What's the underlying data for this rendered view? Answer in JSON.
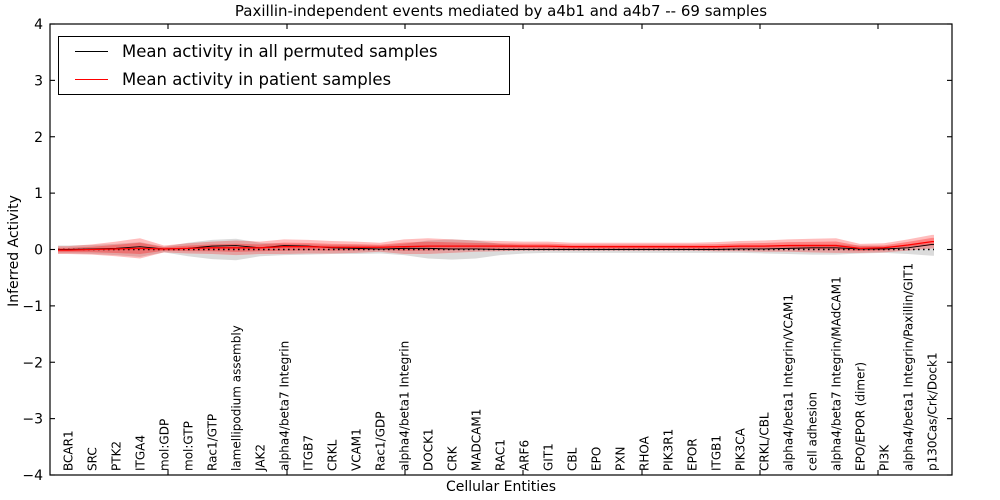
{
  "figure": {
    "title": "Paxillin-independent events mediated by a4b1 and a4b7 -- 69 samples"
  },
  "chart_data": {
    "type": "line",
    "title": "Paxillin-independent events mediated by a4b1 and a4b7 -- 69 samples",
    "xlabel": "Cellular Entities",
    "ylabel": "Inferred Activity",
    "ylim": [
      -4,
      4
    ],
    "yticks": [
      4,
      3,
      2,
      1,
      0,
      -1,
      -2,
      -3,
      -4
    ],
    "yticklabels": [
      "4",
      "3",
      "2",
      "1",
      "0",
      "−1",
      "−2",
      "−3",
      "−4"
    ],
    "grid": false,
    "legend_position": "upper left",
    "legend": [
      "Mean activity in all permuted samples",
      "Mean activity in patient samples"
    ],
    "zero_reference_line": {
      "y": 0,
      "style": "dotted",
      "color": "#000000"
    },
    "colors": {
      "permuted_line": "#000000",
      "patient_line": "#ff0000",
      "permuted_band": "rgba(0,0,0,0.14)",
      "patient_band": "rgba(255,0,0,0.26)"
    },
    "categories": [
      "BCAR1",
      "SRC",
      "PTK2",
      "ITGA4",
      "mol:GDP",
      "mol:GTP",
      "Rac1/GTP",
      "lamellipodium assembly",
      "JAK2",
      "alpha4/beta7 Integrin",
      "ITGB7",
      "CRKL",
      "VCAM1",
      "Rac1/GDP",
      "alpha4/beta1 Integrin",
      "DOCK1",
      "CRK",
      "MADCAM1",
      "RAC1",
      "ARF6",
      "GIT1",
      "CBL",
      "EPO",
      "PXN",
      "RHOA",
      "PIK3R1",
      "EPOR",
      "ITGB1",
      "PIK3CA",
      "CRKL/CBL",
      "alpha4/beta1 Integrin/VCAM1",
      "cell adhesion",
      "alpha4/beta7 Integrin/MAdCAM1",
      "EPO/EPOR (dimer)",
      "PI3K",
      "alpha4/beta1 Integrin/Paxillin/GIT1",
      "p130Cas/Crk/Dock1"
    ],
    "series": [
      {
        "name": "Mean activity in all permuted samples",
        "values": [
          0,
          0.01,
          0.02,
          0.05,
          0.01,
          0.02,
          0.06,
          0.07,
          0.03,
          0.07,
          0.06,
          0.03,
          0.02,
          0.01,
          0.02,
          0.02,
          0.01,
          0.01,
          0,
          0,
          0,
          0,
          0,
          0,
          0,
          0,
          0,
          0,
          0.01,
          0.01,
          0.02,
          0.03,
          0.03,
          0.01,
          0.01,
          0.03,
          0.09
        ]
      },
      {
        "name": "Mean activity in patient samples",
        "values": [
          -0.01,
          0,
          0.01,
          0.02,
          0.01,
          0.02,
          0.03,
          0.03,
          0.03,
          0.05,
          0.05,
          0.04,
          0.04,
          0.04,
          0.05,
          0.06,
          0.06,
          0.06,
          0.06,
          0.06,
          0.06,
          0.05,
          0.05,
          0.05,
          0.05,
          0.05,
          0.05,
          0.05,
          0.06,
          0.06,
          0.07,
          0.07,
          0.07,
          0.02,
          0.03,
          0.08,
          0.14
        ]
      }
    ],
    "bands": [
      {
        "name": "permuted std band",
        "center": "zero",
        "half_width": [
          0.07,
          0.08,
          0.1,
          0.13,
          0.05,
          0.12,
          0.17,
          0.19,
          0.12,
          0.1,
          0.09,
          0.08,
          0.08,
          0.07,
          0.1,
          0.16,
          0.18,
          0.16,
          0.1,
          0.07,
          0.06,
          0.06,
          0.06,
          0.06,
          0.06,
          0.06,
          0.06,
          0.06,
          0.06,
          0.07,
          0.08,
          0.09,
          0.09,
          0.07,
          0.06,
          0.08,
          0.11
        ]
      },
      {
        "name": "patient std band",
        "center": "patient mean",
        "half_width": [
          0.07,
          0.09,
          0.13,
          0.18,
          0.06,
          0.09,
          0.11,
          0.13,
          0.11,
          0.13,
          0.12,
          0.11,
          0.1,
          0.08,
          0.13,
          0.14,
          0.12,
          0.1,
          0.09,
          0.08,
          0.08,
          0.07,
          0.07,
          0.07,
          0.07,
          0.07,
          0.07,
          0.08,
          0.09,
          0.1,
          0.11,
          0.12,
          0.13,
          0.08,
          0.08,
          0.1,
          0.12
        ]
      }
    ]
  }
}
